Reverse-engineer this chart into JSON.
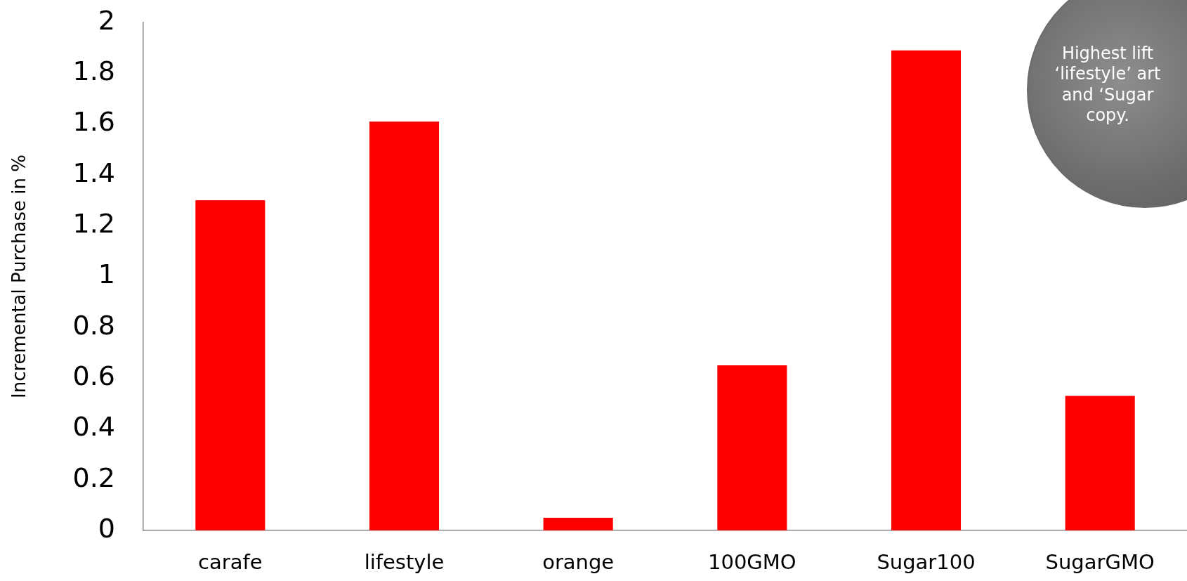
{
  "chart_data": {
    "type": "bar",
    "ylabel": "Incremental Purchase in %",
    "categories": [
      "carafe",
      "lifestyle",
      "orange",
      "100GMO",
      "Sugar100",
      "SugarGMO"
    ],
    "values": [
      1.3,
      1.61,
      0.05,
      0.65,
      1.89,
      0.53
    ],
    "color": "#ff0000",
    "ylim": [
      0,
      2
    ],
    "yticks": [
      0,
      0.2,
      0.4,
      0.6,
      0.8,
      1,
      1.2,
      1.4,
      1.6,
      1.8,
      2
    ],
    "grid": false,
    "annotations": [
      "Highest lift\n‘lifestyle’ art\nand ‘Sugar\ncopy."
    ]
  }
}
